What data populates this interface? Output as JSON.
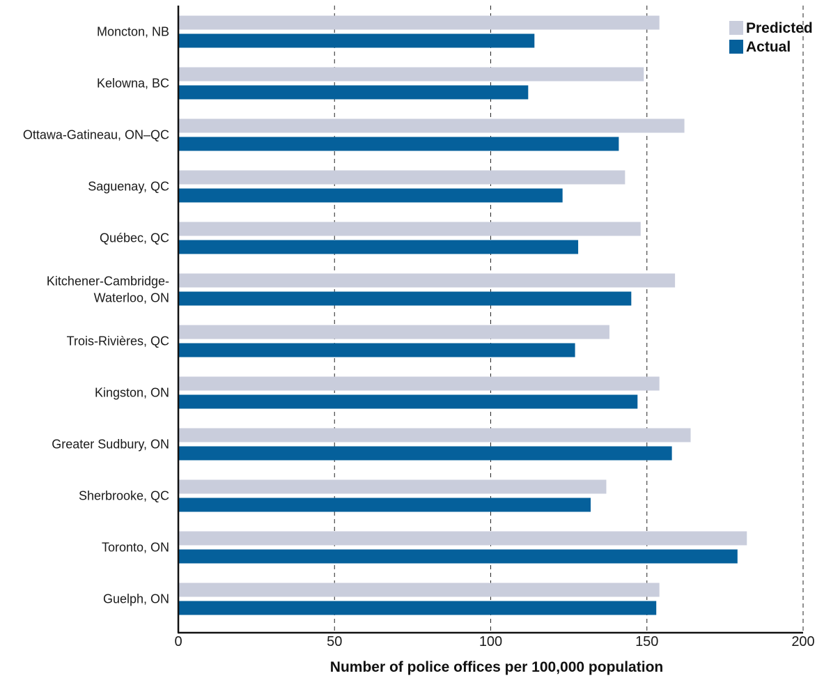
{
  "chart_data": {
    "type": "bar",
    "orientation": "horizontal",
    "categories": [
      "Moncton, NB",
      "Kelowna, BC",
      "Ottawa-Gatineau, ON–QC",
      "Saguenay, QC",
      "Québec, QC",
      "Kitchener-Cambridge-Waterloo, ON",
      "Trois-Rivières, QC",
      "Kingston, ON",
      "Greater Sudbury, ON",
      "Sherbrooke, QC",
      "Toronto, ON",
      "Guelph, ON"
    ],
    "category_label_lines": [
      [
        "Moncton, NB"
      ],
      [
        "Kelowna, BC"
      ],
      [
        "Ottawa-Gatineau, ON–QC"
      ],
      [
        "Saguenay, QC"
      ],
      [
        "Québec, QC"
      ],
      [
        "Kitchener-Cambridge-",
        "Waterloo, ON"
      ],
      [
        "Trois-Rivières, QC"
      ],
      [
        "Kingston, ON"
      ],
      [
        "Greater Sudbury, ON"
      ],
      [
        "Sherbrooke, QC"
      ],
      [
        "Toronto, ON"
      ],
      [
        "Guelph, ON"
      ]
    ],
    "series": [
      {
        "name": "Predicted",
        "color": "#c9cddc",
        "values": [
          154,
          149,
          162,
          143,
          148,
          159,
          138,
          154,
          164,
          137,
          182,
          154
        ]
      },
      {
        "name": "Actual",
        "color": "#05609b",
        "values": [
          114,
          112,
          141,
          123,
          128,
          145,
          127,
          147,
          158,
          132,
          179,
          153
        ]
      }
    ],
    "xlabel": "Number of police offices per 100,000 population",
    "ylabel": "",
    "xlim": [
      0,
      200
    ],
    "xticks": [
      0,
      50,
      100,
      150,
      200
    ],
    "grid": "vertical-dashed",
    "legend_position": "top-right"
  }
}
